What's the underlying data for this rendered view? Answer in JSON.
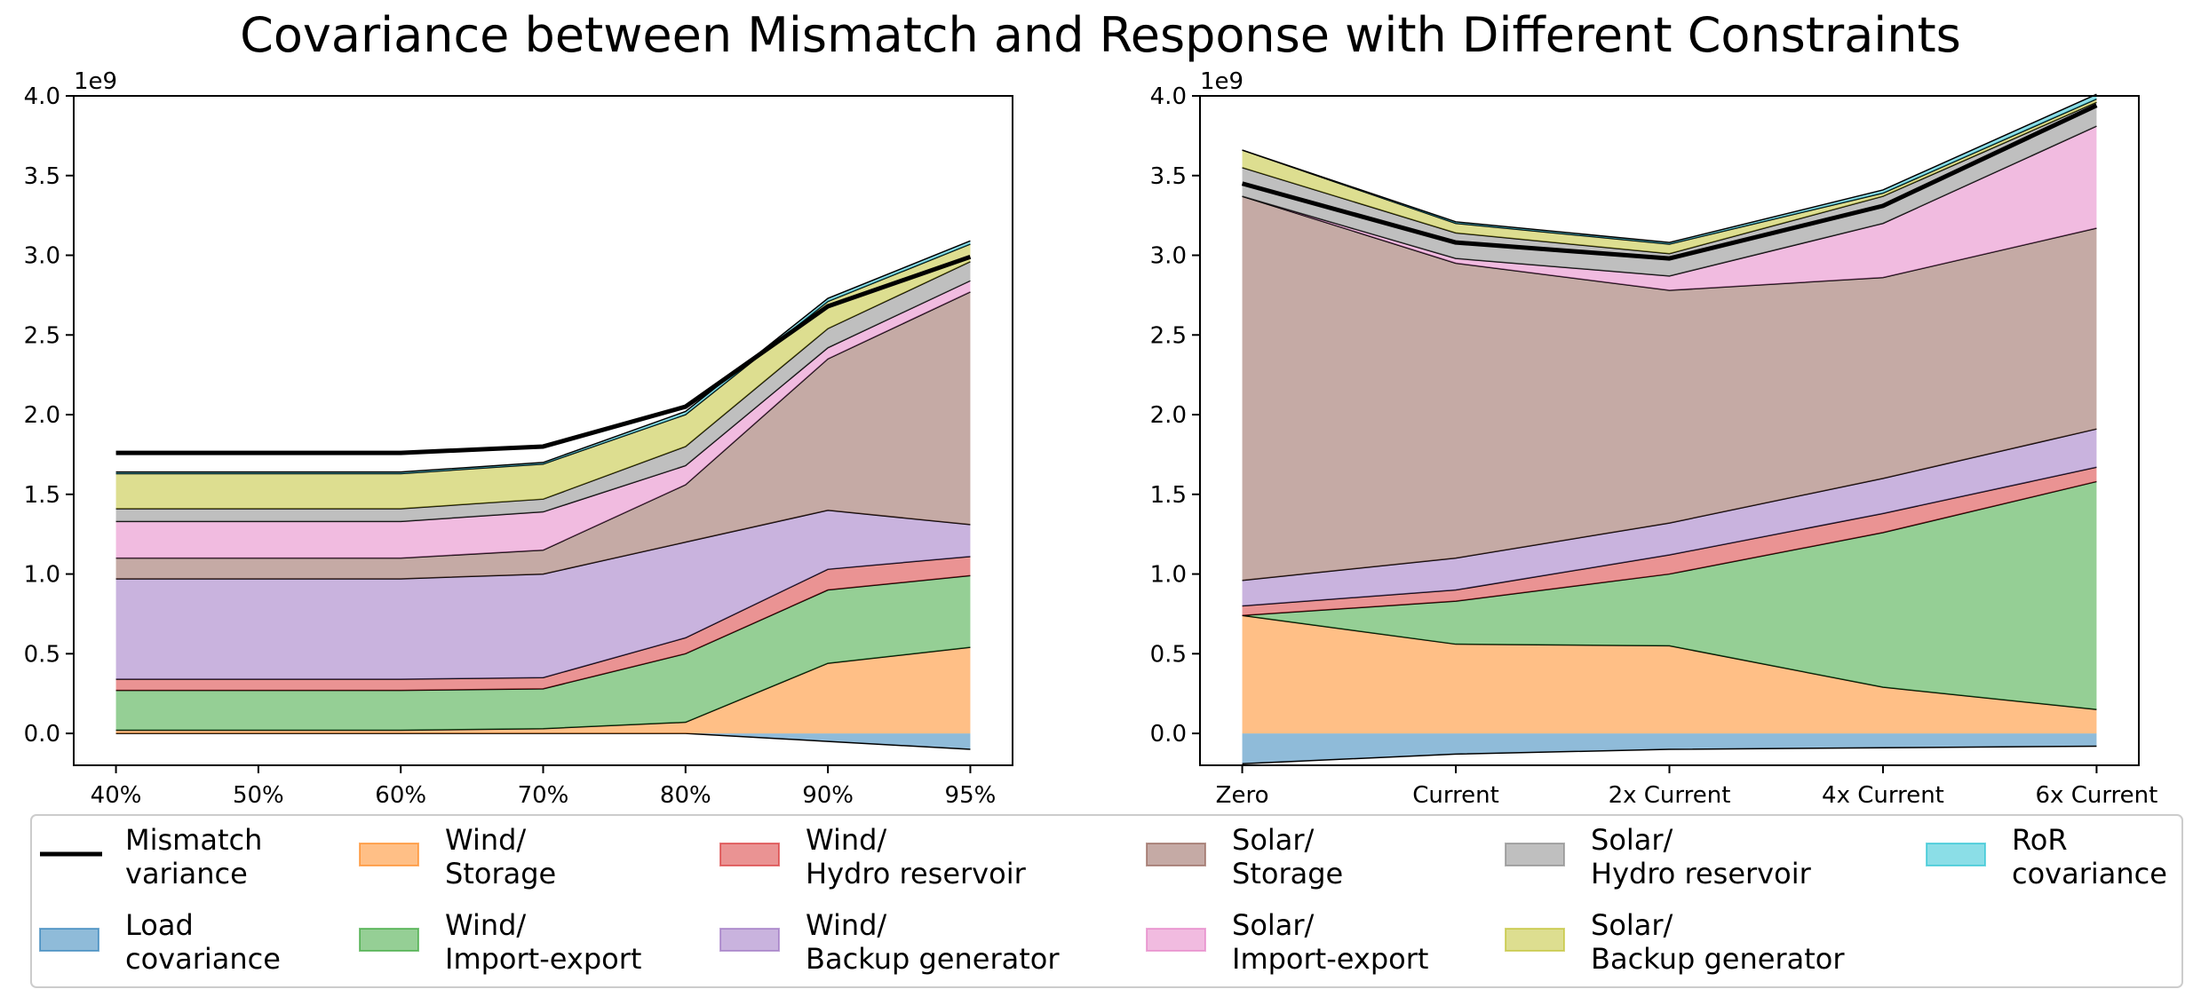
{
  "title": "Covariance between Mismatch and Response with Different Constraints",
  "legend": {
    "items": [
      {
        "key": "mismatch",
        "line1": "Mismatch",
        "line2": "variance",
        "kind": "line",
        "color": "#000000"
      },
      {
        "key": "load",
        "line1": "Load",
        "line2": "covariance",
        "kind": "patch",
        "color": "#1f77b4"
      },
      {
        "key": "wind_storage",
        "line1": "Wind/",
        "line2": "Storage",
        "kind": "patch",
        "color": "#ff7f0e"
      },
      {
        "key": "wind_import",
        "line1": "Wind/",
        "line2": "Import-export",
        "kind": "patch",
        "color": "#2ca02c"
      },
      {
        "key": "wind_hydro",
        "line1": "Wind/",
        "line2": "Hydro reservoir",
        "kind": "patch",
        "color": "#d62728"
      },
      {
        "key": "wind_backup",
        "line1": "Wind/",
        "line2": "Backup generator",
        "kind": "patch",
        "color": "#9467bd"
      },
      {
        "key": "solar_storage",
        "line1": "Solar/",
        "line2": "Storage",
        "kind": "patch",
        "color": "#8c564b"
      },
      {
        "key": "solar_import",
        "line1": "Solar/",
        "line2": "Import-export",
        "kind": "patch",
        "color": "#e377c2"
      },
      {
        "key": "solar_hydro",
        "line1": "Solar/",
        "line2": "Hydro reservoir",
        "kind": "patch",
        "color": "#7f7f7f"
      },
      {
        "key": "solar_backup",
        "line1": "Solar/",
        "line2": "Backup generator",
        "kind": "patch",
        "color": "#bcbd22"
      },
      {
        "key": "ror",
        "line1": "RoR",
        "line2": "covariance",
        "kind": "patch",
        "color": "#17becf"
      }
    ]
  },
  "chart_data": [
    {
      "type": "area",
      "title": "",
      "xlabel": "",
      "ylabel": "",
      "y_offset_label": "1e9",
      "categories": [
        "40%",
        "50%",
        "60%",
        "70%",
        "80%",
        "90%",
        "95%"
      ],
      "ylim": [
        -0.2,
        4.0
      ],
      "yticks": [
        "0.0",
        "0.5",
        "1.0",
        "1.5",
        "2.0",
        "2.5",
        "3.0",
        "3.5",
        "4.0"
      ],
      "negative_series": [
        {
          "name": "Load covariance",
          "values": [
            0.0,
            0.0,
            0.0,
            0.0,
            0.0,
            -0.05,
            -0.1
          ]
        }
      ],
      "series": [
        {
          "name": "Wind/Storage",
          "values": [
            0.02,
            0.02,
            0.02,
            0.03,
            0.07,
            0.44,
            0.54
          ]
        },
        {
          "name": "Wind/Import-export",
          "values": [
            0.25,
            0.25,
            0.25,
            0.25,
            0.43,
            0.46,
            0.45
          ]
        },
        {
          "name": "Wind/Hydro reservoir",
          "values": [
            0.07,
            0.07,
            0.07,
            0.07,
            0.1,
            0.13,
            0.12
          ]
        },
        {
          "name": "Wind/Backup generator",
          "values": [
            0.63,
            0.63,
            0.63,
            0.65,
            0.6,
            0.37,
            0.2
          ]
        },
        {
          "name": "Solar/Storage",
          "values": [
            0.13,
            0.13,
            0.13,
            0.15,
            0.36,
            0.95,
            1.46
          ]
        },
        {
          "name": "Solar/Import-export",
          "values": [
            0.23,
            0.23,
            0.23,
            0.24,
            0.12,
            0.07,
            0.07
          ]
        },
        {
          "name": "Solar/Hydro reservoir",
          "values": [
            0.08,
            0.08,
            0.08,
            0.08,
            0.12,
            0.12,
            0.12
          ]
        },
        {
          "name": "Solar/Backup generator",
          "values": [
            0.22,
            0.22,
            0.22,
            0.22,
            0.2,
            0.17,
            0.11
          ]
        },
        {
          "name": "RoR covariance",
          "values": [
            0.01,
            0.01,
            0.01,
            0.01,
            0.02,
            0.02,
            0.02
          ]
        }
      ],
      "mismatch_variance": [
        1.76,
        1.76,
        1.76,
        1.8,
        2.05,
        2.68,
        2.99
      ]
    },
    {
      "type": "area",
      "title": "",
      "xlabel": "",
      "ylabel": "",
      "y_offset_label": "1e9",
      "categories": [
        "Zero",
        "Current",
        "2x Current",
        "4x Current",
        "6x Current"
      ],
      "ylim": [
        -0.2,
        4.0
      ],
      "yticks": [
        "0.0",
        "0.5",
        "1.0",
        "1.5",
        "2.0",
        "2.5",
        "3.0",
        "3.5",
        "4.0"
      ],
      "negative_series": [
        {
          "name": "Load covariance",
          "values": [
            -0.19,
            -0.13,
            -0.1,
            -0.09,
            -0.08
          ]
        }
      ],
      "series": [
        {
          "name": "Wind/Storage",
          "values": [
            0.74,
            0.56,
            0.55,
            0.29,
            0.15
          ]
        },
        {
          "name": "Wind/Import-export",
          "values": [
            0.0,
            0.27,
            0.45,
            0.97,
            1.43
          ]
        },
        {
          "name": "Wind/Hydro reservoir",
          "values": [
            0.06,
            0.07,
            0.12,
            0.12,
            0.09
          ]
        },
        {
          "name": "Wind/Backup generator",
          "values": [
            0.16,
            0.2,
            0.2,
            0.22,
            0.24
          ]
        },
        {
          "name": "Solar/Storage",
          "values": [
            2.41,
            1.85,
            1.46,
            1.26,
            1.26
          ]
        },
        {
          "name": "Solar/Import-export",
          "values": [
            0.0,
            0.03,
            0.09,
            0.34,
            0.64
          ]
        },
        {
          "name": "Solar/Hydro reservoir",
          "values": [
            0.18,
            0.16,
            0.14,
            0.17,
            0.15
          ]
        },
        {
          "name": "Solar/Backup generator",
          "values": [
            0.11,
            0.06,
            0.06,
            0.02,
            0.02
          ]
        },
        {
          "name": "RoR covariance",
          "values": [
            0.0,
            0.01,
            0.01,
            0.02,
            0.03
          ]
        }
      ],
      "mismatch_variance": [
        3.45,
        3.08,
        2.98,
        3.31,
        3.94
      ]
    }
  ]
}
